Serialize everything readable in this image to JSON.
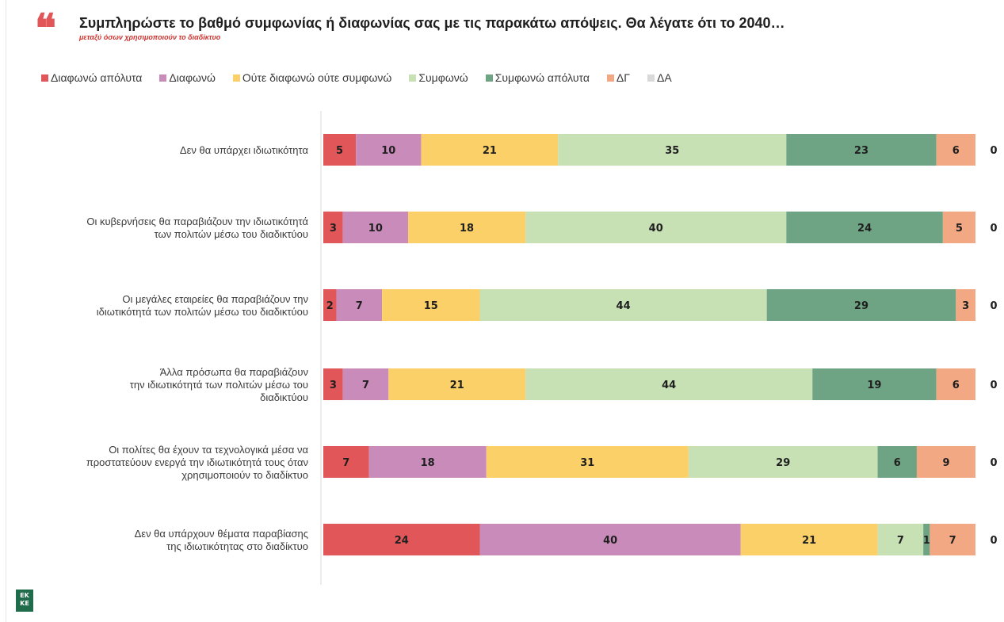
{
  "header": {
    "quote_glyph": "❝",
    "title": "Συμπληρώστε το βαθμό συμφωνίας ή διαφωνίας σας με τις παρακάτω απόψεις. Θα λέγατε ότι το 2040…",
    "subtitle": "μεταξύ όσων χρησιμοποιούν το διαδίκτυο"
  },
  "logo": {
    "text": "ΕΚ ΚΕ"
  },
  "chart_data": {
    "type": "bar",
    "orientation": "horizontal",
    "stacked": true,
    "legend_position": "top",
    "grid": false,
    "xlim": [
      0,
      100
    ],
    "categories": [
      "Δεν θα υπάρχει ιδιωτικότητα",
      "Οι κυβερνήσεις θα παραβιάζουν την ιδιωτικότητά των πολιτών μέσω του διαδικτύου",
      "Οι μεγάλες εταιρείες θα παραβιάζουν την ιδιωτικότητά των πολιτών μέσω του διαδικτύου",
      "Άλλα πρόσωπα θα παραβιάζουν την ιδιωτικότητά των πολιτών μέσω του διαδικτύου",
      "Οι πολίτες θα έχουν τα τεχνολογικά μέσα να προστατεύουν ενεργά την ιδιωτικότητά τους όταν χρησιμοποιούν το διαδίκτυο",
      "Δεν θα υπάρχουν θέματα παραβίασης της ιδιωτικότητας στο διαδίκτυο"
    ],
    "category_lines": [
      [
        "Δεν θα υπάρχει ιδιωτικότητα"
      ],
      [
        "Οι κυβερνήσεις θα παραβιάζουν την ιδιωτικότητά",
        "των πολιτών μέσω του διαδικτύου"
      ],
      [
        "Οι μεγάλες εταιρείες θα παραβιάζουν την",
        "ιδιωτικότητά των πολιτών μέσω του διαδικτύου"
      ],
      [
        "Άλλα πρόσωπα θα παραβιάζουν",
        "την  ιδιωτικότητά των πολιτών μέσω του",
        "διαδικτύου"
      ],
      [
        "Οι πολίτες θα έχουν τα τεχνολογικά μέσα να",
        "προστατεύουν ενεργά την ιδιωτικότητά τους όταν",
        "χρησιμοποιούν το διαδίκτυο"
      ],
      [
        "Δεν θα υπάρχουν θέματα παραβίασης",
        "της ιδιωτικότητας στο διαδίκτυο"
      ]
    ],
    "series": [
      {
        "name": "Διαφωνώ απόλυτα",
        "color": "#e15759",
        "values": [
          5,
          3,
          2,
          3,
          7,
          24
        ]
      },
      {
        "name": "Διαφωνώ",
        "color": "#c98bba",
        "values": [
          10,
          10,
          7,
          7,
          18,
          40
        ]
      },
      {
        "name": "Ούτε διαφωνώ ούτε συμφωνώ",
        "color": "#fcd068",
        "values": [
          21,
          18,
          15,
          21,
          31,
          21
        ]
      },
      {
        "name": "Συμφωνώ",
        "color": "#c7e1b5",
        "values": [
          35,
          40,
          44,
          44,
          29,
          7
        ]
      },
      {
        "name": "Συμφωνώ απόλυτα",
        "color": "#6ea383",
        "values": [
          23,
          24,
          29,
          19,
          6,
          1
        ]
      },
      {
        "name": "ΔΓ",
        "color": "#f2a882",
        "values": [
          6,
          5,
          3,
          6,
          9,
          7
        ]
      },
      {
        "name": "ΔΑ",
        "color": "#d9d9d9",
        "values": [
          0,
          0,
          0,
          0,
          0,
          0
        ]
      }
    ]
  }
}
